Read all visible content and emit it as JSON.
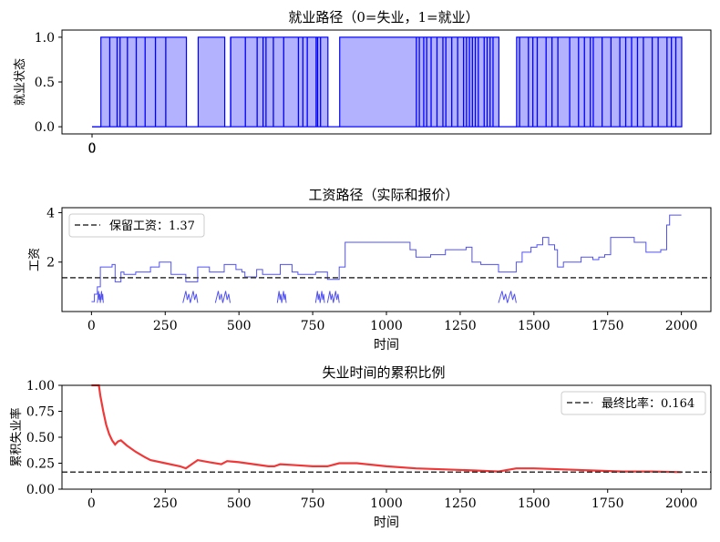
{
  "chart_data": [
    {
      "type": "area",
      "title": "就业路径（0=失业，1=就业）",
      "xlabel": "",
      "ylabel": "就业状态",
      "yticks": [
        "0.0",
        "0.5",
        "1.0"
      ],
      "xticks": [
        "0",
        "0"
      ],
      "ylim": [
        -0.08,
        1.08
      ],
      "xlim": [
        0,
        2000
      ],
      "color": "#0000ff",
      "employment_segments": [
        [
          0,
          30,
          0
        ],
        [
          30,
          320,
          1
        ],
        [
          320,
          360,
          0
        ],
        [
          360,
          450,
          1
        ],
        [
          450,
          470,
          0
        ],
        [
          470,
          800,
          1
        ],
        [
          800,
          840,
          0
        ],
        [
          840,
          1380,
          1
        ],
        [
          1380,
          1440,
          0
        ],
        [
          1440,
          2000,
          1
        ]
      ],
      "dropouts": [
        60,
        85,
        95,
        120,
        150,
        180,
        215,
        250,
        470,
        520,
        560,
        580,
        590,
        615,
        650,
        700,
        715,
        730,
        760,
        765,
        775,
        1100,
        1110,
        1125,
        1135,
        1150,
        1170,
        1190,
        1200,
        1220,
        1240,
        1260,
        1270,
        1280,
        1290,
        1300,
        1310,
        1330,
        1340,
        1350,
        1360,
        1450,
        1480,
        1495,
        1510,
        1540,
        1560,
        1580,
        1620,
        1650,
        1670,
        1690,
        1700,
        1730,
        1760,
        1790,
        1810,
        1830,
        1850,
        1870,
        1900,
        1920,
        1950,
        1965,
        1980
      ]
    },
    {
      "type": "line",
      "title": "工资路径（实际和报价）",
      "xlabel": "时间",
      "ylabel": "工资",
      "xlim": [
        -100,
        2100
      ],
      "ylim": [
        0,
        4.2
      ],
      "xticks": [
        0,
        250,
        500,
        750,
        1000,
        1250,
        1500,
        1750,
        2000
      ],
      "yticks": [
        2,
        4
      ],
      "color": "#3333ee",
      "reservation_wage": 1.37,
      "legend": "保留工资：1.37",
      "wage_steps": [
        [
          0,
          0.4
        ],
        [
          10,
          0.7
        ],
        [
          20,
          1.0
        ],
        [
          30,
          1.8
        ],
        [
          70,
          1.9
        ],
        [
          80,
          1.2
        ],
        [
          100,
          1.6
        ],
        [
          110,
          1.5
        ],
        [
          150,
          1.6
        ],
        [
          200,
          1.8
        ],
        [
          230,
          2.0
        ],
        [
          270,
          1.5
        ],
        [
          320,
          1.2
        ],
        [
          360,
          1.8
        ],
        [
          400,
          1.6
        ],
        [
          450,
          1.9
        ],
        [
          490,
          1.7
        ],
        [
          510,
          1.6
        ],
        [
          520,
          1.4
        ],
        [
          560,
          1.7
        ],
        [
          580,
          1.5
        ],
        [
          630,
          1.5
        ],
        [
          640,
          1.9
        ],
        [
          680,
          1.6
        ],
        [
          700,
          1.5
        ],
        [
          740,
          1.5
        ],
        [
          760,
          1.6
        ],
        [
          800,
          1.3
        ],
        [
          840,
          1.8
        ],
        [
          860,
          2.8
        ],
        [
          900,
          2.8
        ],
        [
          1000,
          2.8
        ],
        [
          1080,
          2.5
        ],
        [
          1100,
          2.2
        ],
        [
          1150,
          2.3
        ],
        [
          1200,
          2.5
        ],
        [
          1240,
          2.5
        ],
        [
          1270,
          2.6
        ],
        [
          1290,
          2.0
        ],
        [
          1320,
          1.9
        ],
        [
          1380,
          1.6
        ],
        [
          1440,
          2.0
        ],
        [
          1460,
          2.4
        ],
        [
          1490,
          2.6
        ],
        [
          1510,
          2.7
        ],
        [
          1530,
          3.0
        ],
        [
          1550,
          2.7
        ],
        [
          1570,
          2.5
        ],
        [
          1580,
          1.8
        ],
        [
          1600,
          2.0
        ],
        [
          1660,
          2.2
        ],
        [
          1700,
          2.1
        ],
        [
          1720,
          2.2
        ],
        [
          1740,
          2.3
        ],
        [
          1760,
          3.0
        ],
        [
          1840,
          2.8
        ],
        [
          1880,
          2.4
        ],
        [
          1930,
          2.5
        ],
        [
          1950,
          3.5
        ],
        [
          1960,
          3.9
        ],
        [
          2000,
          3.9
        ]
      ],
      "dips": [
        [
          20,
          40
        ],
        [
          310,
          360
        ],
        [
          420,
          470
        ],
        [
          630,
          660
        ],
        [
          760,
          790
        ],
        [
          800,
          840
        ],
        [
          1380,
          1440
        ]
      ]
    },
    {
      "type": "line",
      "title": "失业时间的累积比例",
      "xlabel": "时间",
      "ylabel": "累积失业率",
      "xlim": [
        -100,
        2100
      ],
      "ylim": [
        0,
        1
      ],
      "xticks": [
        0,
        250,
        500,
        750,
        1000,
        1250,
        1500,
        1750,
        2000
      ],
      "yticks": [
        "0.00",
        "0.25",
        "0.50",
        "0.75",
        "1.00"
      ],
      "color": "#ee2222",
      "final_ratio": 0.164,
      "legend": "最终比率：0.164",
      "x": [
        0,
        25,
        30,
        40,
        50,
        60,
        70,
        80,
        90,
        100,
        120,
        150,
        180,
        200,
        250,
        300,
        320,
        340,
        360,
        400,
        440,
        460,
        500,
        550,
        600,
        620,
        640,
        700,
        750,
        780,
        800,
        840,
        900,
        1000,
        1100,
        1200,
        1300,
        1380,
        1440,
        1500,
        1600,
        1700,
        1800,
        1900,
        2000
      ],
      "y": [
        1.0,
        1.0,
        0.9,
        0.75,
        0.62,
        0.53,
        0.47,
        0.43,
        0.46,
        0.47,
        0.42,
        0.36,
        0.31,
        0.28,
        0.25,
        0.22,
        0.2,
        0.24,
        0.28,
        0.26,
        0.24,
        0.27,
        0.26,
        0.24,
        0.22,
        0.22,
        0.24,
        0.23,
        0.22,
        0.22,
        0.22,
        0.25,
        0.25,
        0.22,
        0.2,
        0.19,
        0.18,
        0.17,
        0.2,
        0.2,
        0.19,
        0.18,
        0.17,
        0.17,
        0.164
      ]
    }
  ]
}
